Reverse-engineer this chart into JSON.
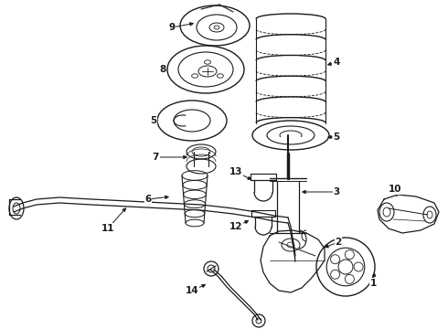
{
  "background_color": "#ffffff",
  "line_color": "#1a1a1a",
  "figsize": [
    4.9,
    3.6
  ],
  "dpi": 100
}
